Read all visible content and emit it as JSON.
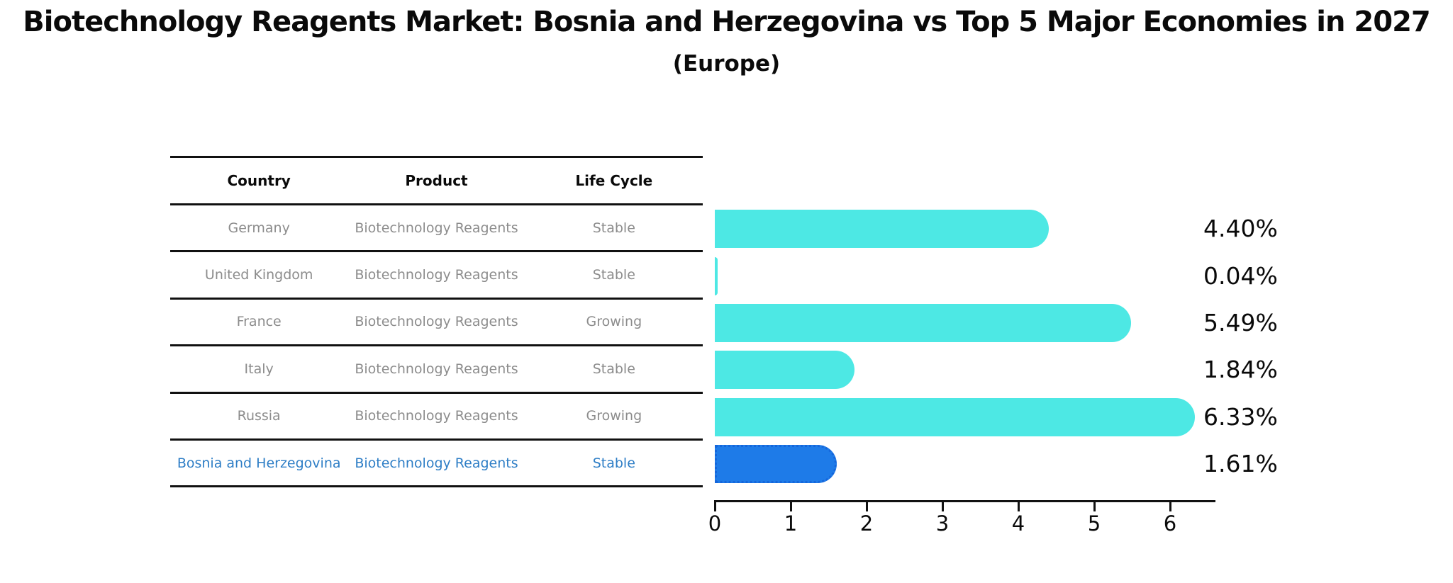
{
  "title": "Biotechnology Reagents Market: Bosnia and Herzegovina vs Top 5 Major Economies in 2027",
  "subtitle": "(Europe)",
  "table": {
    "headers": [
      "Country",
      "Product",
      "Life Cycle"
    ],
    "rows": [
      {
        "country": "Germany",
        "product": "Biotechnology Reagents",
        "life_cycle": "Stable",
        "highlight": false
      },
      {
        "country": "United Kingdom",
        "product": "Biotechnology Reagents",
        "life_cycle": "Stable",
        "highlight": false
      },
      {
        "country": "France",
        "product": "Biotechnology Reagents",
        "life_cycle": "Growing",
        "highlight": false
      },
      {
        "country": "Italy",
        "product": "Biotechnology Reagents",
        "life_cycle": "Stable",
        "highlight": false
      },
      {
        "country": "Russia",
        "product": "Biotechnology Reagents",
        "life_cycle": "Growing",
        "highlight": false
      },
      {
        "country": "Bosnia and Herzegovina",
        "product": "Biotechnology Reagents",
        "life_cycle": "Stable",
        "highlight": true
      }
    ]
  },
  "chart_data": {
    "type": "bar",
    "orientation": "horizontal",
    "title": "Biotechnology Reagents Market: Bosnia and Herzegovina vs Top 5 Major Economies in 2027",
    "subtitle": "(Europe)",
    "categories": [
      "Germany",
      "United Kingdom",
      "France",
      "Italy",
      "Russia",
      "Bosnia and Herzegovina"
    ],
    "values": [
      4.4,
      0.04,
      5.49,
      1.84,
      6.33,
      1.61
    ],
    "value_labels": [
      "4.40%",
      "0.04%",
      "5.49%",
      "1.84%",
      "6.33%",
      "1.61%"
    ],
    "highlight_index": 5,
    "xlim": [
      0,
      6.6
    ],
    "xticks": [
      "0",
      "1",
      "2",
      "3",
      "4",
      "5",
      "6"
    ],
    "grid": "off",
    "legend": "none",
    "colors": {
      "bar": "#4DE8E4",
      "highlight_bar": "#1E7BE8",
      "highlight_bar_border": "#1566DB",
      "highlight_text": "#2E7EC6",
      "table_text": "#8C8C8C",
      "axis": "#111111"
    }
  }
}
